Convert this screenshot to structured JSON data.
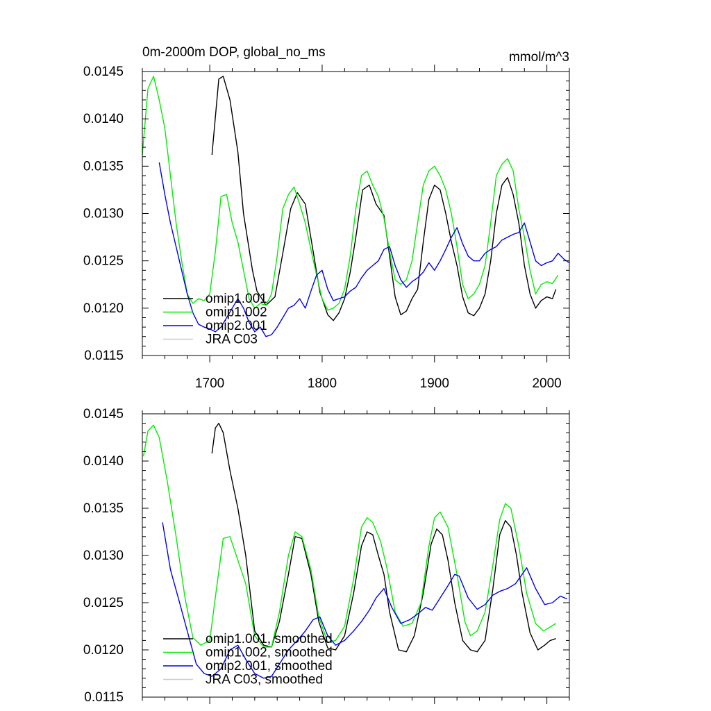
{
  "chart_data": [
    {
      "type": "line",
      "title": "0m-2000m DOP, global_no_ms",
      "units": "mmol/m^3",
      "xlabel": "",
      "ylabel": "",
      "xlim": [
        1640,
        2020
      ],
      "ylim": [
        0.0115,
        0.0145
      ],
      "x_ticks": [
        1700,
        1800,
        1900,
        2000
      ],
      "x_tick_labels": [
        "1700",
        "1800",
        "1900",
        "2000"
      ],
      "y_ticks": [
        0.0115,
        0.012,
        0.0125,
        0.013,
        0.0135,
        0.014,
        0.0145
      ],
      "y_tick_labels": [
        "0.0115",
        "0.0120",
        "0.0125",
        "0.0130",
        "0.0135",
        "0.0140",
        "0.0145"
      ],
      "grid": false,
      "legend_position": "bottom-left",
      "series": [
        {
          "name": "omip1.001",
          "color": "#000000",
          "x": [
            1702,
            1708,
            1712,
            1718,
            1725,
            1730,
            1738,
            1742,
            1750,
            1758,
            1765,
            1772,
            1778,
            1785,
            1792,
            1798,
            1805,
            1810,
            1815,
            1820,
            1825,
            1830,
            1836,
            1842,
            1848,
            1855,
            1860,
            1865,
            1870,
            1875,
            1880,
            1885,
            1890,
            1895,
            1900,
            1905,
            1910,
            1915,
            1920,
            1925,
            1930,
            1935,
            1940,
            1945,
            1950,
            1955,
            1960,
            1965,
            1970,
            1975,
            1980,
            1985,
            1990,
            1995,
            2000,
            2005,
            2008
          ],
          "y": [
            0.01362,
            0.01442,
            0.01445,
            0.0142,
            0.01365,
            0.013,
            0.0124,
            0.01218,
            0.01203,
            0.01212,
            0.01258,
            0.01305,
            0.01322,
            0.0131,
            0.0126,
            0.01217,
            0.01193,
            0.01187,
            0.01195,
            0.0121,
            0.01238,
            0.01275,
            0.01325,
            0.0133,
            0.0131,
            0.01298,
            0.01255,
            0.01212,
            0.01193,
            0.01197,
            0.0121,
            0.0122,
            0.0127,
            0.01315,
            0.0133,
            0.01325,
            0.013,
            0.0127,
            0.01245,
            0.01212,
            0.01195,
            0.01192,
            0.012,
            0.01215,
            0.0125,
            0.013,
            0.0133,
            0.01338,
            0.0132,
            0.0129,
            0.01245,
            0.01215,
            0.012,
            0.01208,
            0.01212,
            0.0121,
            0.0122
          ]
        },
        {
          "name": "omip1.002",
          "color": "#00ee00",
          "x": [
            1640,
            1645,
            1650,
            1655,
            1660,
            1665,
            1670,
            1675,
            1680,
            1685,
            1690,
            1695,
            1700,
            1705,
            1710,
            1715,
            1720,
            1725,
            1730,
            1735,
            1740,
            1745,
            1750,
            1755,
            1760,
            1765,
            1770,
            1775,
            1780,
            1785,
            1790,
            1795,
            1800,
            1805,
            1810,
            1815,
            1820,
            1825,
            1830,
            1835,
            1840,
            1845,
            1850,
            1855,
            1860,
            1865,
            1870,
            1875,
            1880,
            1885,
            1890,
            1895,
            1900,
            1905,
            1910,
            1915,
            1920,
            1925,
            1930,
            1935,
            1940,
            1945,
            1950,
            1955,
            1960,
            1965,
            1970,
            1975,
            1980,
            1985,
            1990,
            1995,
            2000,
            2005,
            2010
          ],
          "y": [
            0.01362,
            0.01432,
            0.01445,
            0.0142,
            0.0139,
            0.0134,
            0.0129,
            0.0125,
            0.01215,
            0.01205,
            0.0121,
            0.01208,
            0.01215,
            0.0126,
            0.01318,
            0.0132,
            0.0129,
            0.0127,
            0.0124,
            0.0121,
            0.012,
            0.01205,
            0.01203,
            0.01215,
            0.01255,
            0.01305,
            0.0132,
            0.01328,
            0.0131,
            0.0129,
            0.01262,
            0.01235,
            0.0121,
            0.01198,
            0.012,
            0.01205,
            0.0122,
            0.01255,
            0.01305,
            0.0134,
            0.01345,
            0.0133,
            0.01318,
            0.01295,
            0.0126,
            0.0123,
            0.01225,
            0.0123,
            0.0125,
            0.0129,
            0.0133,
            0.01345,
            0.0135,
            0.0134,
            0.01325,
            0.013,
            0.01265,
            0.01225,
            0.0121,
            0.01215,
            0.01225,
            0.01245,
            0.0129,
            0.0134,
            0.01352,
            0.01358,
            0.01345,
            0.01305,
            0.01275,
            0.0124,
            0.01215,
            0.01225,
            0.01228,
            0.01226,
            0.01235
          ]
        },
        {
          "name": "omip2.001",
          "color": "#0000ee",
          "x": [
            1655,
            1660,
            1665,
            1670,
            1675,
            1680,
            1685,
            1690,
            1695,
            1700,
            1705,
            1710,
            1715,
            1720,
            1725,
            1730,
            1735,
            1740,
            1745,
            1750,
            1755,
            1760,
            1765,
            1770,
            1775,
            1780,
            1785,
            1790,
            1795,
            1800,
            1805,
            1810,
            1815,
            1820,
            1825,
            1830,
            1835,
            1840,
            1845,
            1850,
            1855,
            1860,
            1865,
            1870,
            1875,
            1880,
            1885,
            1890,
            1895,
            1900,
            1905,
            1910,
            1915,
            1920,
            1925,
            1930,
            1935,
            1940,
            1945,
            1950,
            1955,
            1960,
            1965,
            1970,
            1975,
            1980,
            1985,
            1990,
            1995,
            2000,
            2005,
            2010,
            2015,
            2020
          ],
          "y": [
            0.01354,
            0.0132,
            0.0129,
            0.01265,
            0.0124,
            0.01215,
            0.01195,
            0.01183,
            0.0118,
            0.01178,
            0.01175,
            0.0118,
            0.0119,
            0.012,
            0.0121,
            0.012,
            0.01185,
            0.01175,
            0.0118,
            0.0117,
            0.01172,
            0.0118,
            0.0119,
            0.012,
            0.01203,
            0.0121,
            0.012,
            0.01218,
            0.01235,
            0.0124,
            0.0122,
            0.01208,
            0.0121,
            0.01212,
            0.01218,
            0.01222,
            0.01232,
            0.0124,
            0.01245,
            0.0125,
            0.01262,
            0.01265,
            0.01245,
            0.0123,
            0.01222,
            0.01228,
            0.01232,
            0.01238,
            0.01248,
            0.0124,
            0.0125,
            0.01262,
            0.01275,
            0.01285,
            0.01268,
            0.01255,
            0.0125,
            0.0125,
            0.01258,
            0.01262,
            0.01265,
            0.01272,
            0.01275,
            0.01278,
            0.0128,
            0.0129,
            0.0127,
            0.0125,
            0.01245,
            0.01248,
            0.0125,
            0.01258,
            0.01252,
            0.01248
          ]
        },
        {
          "name": "JRA C03",
          "color": "#cccccc",
          "x": [],
          "y": []
        }
      ]
    },
    {
      "type": "line",
      "title": "",
      "xlabel": "",
      "ylabel": "",
      "xlim": [
        1640,
        2020
      ],
      "ylim": [
        0.0115,
        0.0145
      ],
      "x_ticks": [
        1700,
        1800,
        1900,
        2000
      ],
      "y_ticks": [
        0.0115,
        0.012,
        0.0125,
        0.013,
        0.0135,
        0.014,
        0.0145
      ],
      "y_tick_labels": [
        "0.0115",
        "0.0120",
        "0.0125",
        "0.0130",
        "0.0135",
        "0.0140",
        "0.0145"
      ],
      "grid": false,
      "legend_position": "bottom-left",
      "series": [
        {
          "name": "omip1.001, smoothed",
          "color": "#000000",
          "x": [
            1702,
            1705,
            1708,
            1712,
            1718,
            1725,
            1732,
            1740,
            1748,
            1755,
            1762,
            1770,
            1776,
            1782,
            1790,
            1797,
            1805,
            1812,
            1820,
            1828,
            1835,
            1840,
            1845,
            1850,
            1855,
            1860,
            1868,
            1875,
            1882,
            1890,
            1897,
            1902,
            1907,
            1912,
            1918,
            1925,
            1932,
            1938,
            1945,
            1952,
            1958,
            1963,
            1968,
            1973,
            1978,
            1985,
            1992,
            1998,
            2003,
            2008
          ],
          "y": [
            0.01408,
            0.01435,
            0.0144,
            0.0143,
            0.0139,
            0.0135,
            0.013,
            0.0122,
            0.01205,
            0.01203,
            0.0123,
            0.0128,
            0.0132,
            0.01318,
            0.0128,
            0.0123,
            0.01202,
            0.012,
            0.01215,
            0.0126,
            0.0131,
            0.01325,
            0.01322,
            0.013,
            0.0128,
            0.0124,
            0.012,
            0.01198,
            0.01215,
            0.0126,
            0.01312,
            0.01328,
            0.01322,
            0.01295,
            0.0125,
            0.0121,
            0.012,
            0.01198,
            0.0121,
            0.01265,
            0.01322,
            0.01337,
            0.0133,
            0.013,
            0.0126,
            0.01218,
            0.012,
            0.01205,
            0.0121,
            0.01212
          ]
        },
        {
          "name": "omip1.002, smoothed",
          "color": "#00ee00",
          "x": [
            1641,
            1645,
            1650,
            1655,
            1662,
            1670,
            1678,
            1685,
            1692,
            1700,
            1706,
            1712,
            1718,
            1725,
            1732,
            1740,
            1748,
            1755,
            1762,
            1770,
            1776,
            1782,
            1790,
            1797,
            1805,
            1812,
            1820,
            1828,
            1835,
            1840,
            1845,
            1852,
            1858,
            1865,
            1872,
            1880,
            1888,
            1895,
            1900,
            1905,
            1912,
            1920,
            1927,
            1932,
            1938,
            1945,
            1952,
            1958,
            1963,
            1968,
            1975,
            1982,
            1990,
            1997,
            2004,
            2008
          ],
          "y": [
            0.01405,
            0.01432,
            0.01438,
            0.01425,
            0.0138,
            0.0132,
            0.01255,
            0.01213,
            0.01205,
            0.0121,
            0.01265,
            0.01318,
            0.0132,
            0.01295,
            0.0127,
            0.01215,
            0.01203,
            0.01203,
            0.0124,
            0.013,
            0.01325,
            0.0132,
            0.01285,
            0.01235,
            0.01208,
            0.0121,
            0.01225,
            0.01275,
            0.0133,
            0.0134,
            0.01335,
            0.01315,
            0.01285,
            0.0124,
            0.01225,
            0.01228,
            0.0125,
            0.0131,
            0.0134,
            0.01346,
            0.0133,
            0.0128,
            0.0123,
            0.01215,
            0.0122,
            0.0124,
            0.0129,
            0.01338,
            0.01355,
            0.0135,
            0.0131,
            0.0126,
            0.01228,
            0.0122,
            0.01225,
            0.01228
          ]
        },
        {
          "name": "omip2.001, smoothed",
          "color": "#0000ee",
          "x": [
            1658,
            1665,
            1672,
            1680,
            1688,
            1695,
            1702,
            1710,
            1718,
            1725,
            1732,
            1740,
            1748,
            1755,
            1762,
            1770,
            1778,
            1785,
            1792,
            1798,
            1805,
            1812,
            1820,
            1828,
            1835,
            1842,
            1848,
            1855,
            1862,
            1870,
            1878,
            1885,
            1892,
            1898,
            1905,
            1912,
            1918,
            1922,
            1930,
            1938,
            1945,
            1952,
            1958,
            1965,
            1972,
            1978,
            1982,
            1990,
            1998,
            2005,
            2012,
            2018
          ],
          "y": [
            0.01335,
            0.01285,
            0.01255,
            0.0122,
            0.01185,
            0.01175,
            0.01172,
            0.0118,
            0.012,
            0.01205,
            0.0119,
            0.01175,
            0.0117,
            0.01172,
            0.01185,
            0.012,
            0.0121,
            0.0122,
            0.01232,
            0.01235,
            0.01215,
            0.01205,
            0.0121,
            0.0122,
            0.0123,
            0.01242,
            0.01255,
            0.01265,
            0.01245,
            0.01228,
            0.01232,
            0.01238,
            0.01245,
            0.01242,
            0.01255,
            0.01268,
            0.0128,
            0.01278,
            0.01255,
            0.01243,
            0.01248,
            0.01258,
            0.01262,
            0.01265,
            0.0127,
            0.0128,
            0.01287,
            0.01265,
            0.01248,
            0.0125,
            0.01257,
            0.01254
          ]
        },
        {
          "name": "JRA C03, smoothed",
          "color": "#cccccc",
          "x": [],
          "y": []
        }
      ]
    }
  ]
}
